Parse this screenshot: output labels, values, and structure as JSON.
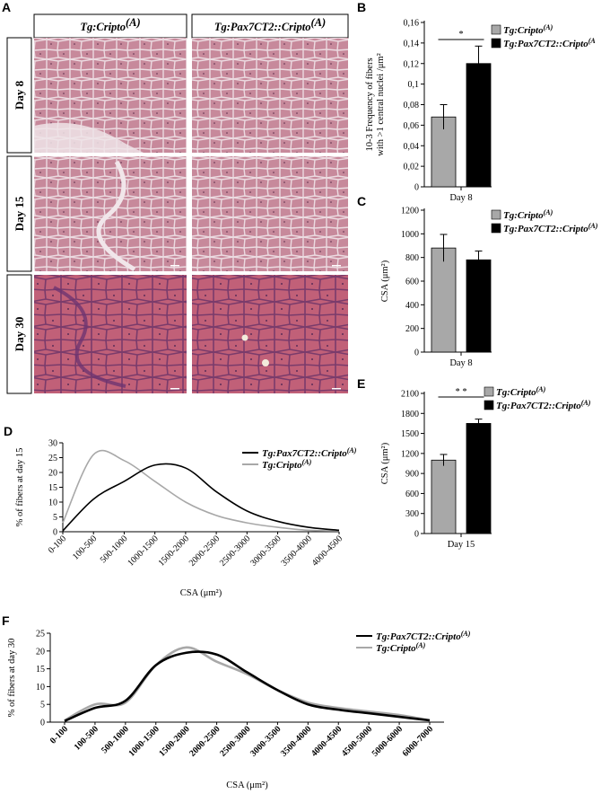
{
  "panels": {
    "A": "A",
    "B": "B",
    "C": "C",
    "D": "D",
    "E": "E",
    "F": "F"
  },
  "histology": {
    "columns": [
      "Tg:Cripto",
      "Tg:Pax7CT2::Cripto"
    ],
    "superscript": "(A)",
    "rows": [
      "Day 8",
      "Day 15",
      "Day 30"
    ]
  },
  "colors": {
    "cripto": "#a8a8a8",
    "pax7": "#000000",
    "tissue_pink": "#c98a9b",
    "tissue_purple": "#8d3f66"
  },
  "chart_data": [
    {
      "panel": "B",
      "type": "bar",
      "categories": [
        "Day 8"
      ],
      "series": [
        {
          "name": "Tg:Cripto(A)",
          "values": [
            0.068
          ],
          "error": [
            0.012
          ]
        },
        {
          "name": "Tg:Pax7CT2::Cripto(A",
          "values": [
            0.12
          ],
          "error": [
            0.017
          ]
        }
      ],
      "ylabel_line1": "10-3 Frequency of fibers",
      "ylabel_line2": "with >1 central nuclei /μm²",
      "ylim": [
        0,
        0.16
      ],
      "yticks": [
        "0",
        "0,02",
        "0,04",
        "0,06",
        "0,08",
        "0,1",
        "0,12",
        "0,14",
        "0,16"
      ],
      "significance": "*",
      "legend_position": "top-right"
    },
    {
      "panel": "C",
      "type": "bar",
      "categories": [
        "Day 8"
      ],
      "series": [
        {
          "name": "Tg:Cripto(A)",
          "values": [
            880
          ],
          "error": [
            115
          ]
        },
        {
          "name": "Tg:Pax7CT2::Cripto(A)",
          "values": [
            780
          ],
          "error": [
            75
          ]
        }
      ],
      "ylabel": "CSA (μm²)",
      "ylim": [
        0,
        1200
      ],
      "yticks": [
        "0",
        "200",
        "400",
        "600",
        "800",
        "1000",
        "1200"
      ],
      "legend_position": "top-right"
    },
    {
      "panel": "E",
      "type": "bar",
      "categories": [
        "Day 15"
      ],
      "series": [
        {
          "name": "Tg:Cripto(A)",
          "values": [
            1100
          ],
          "error": [
            85
          ]
        },
        {
          "name": "Tg:Pax7CT2::Cripto(A)",
          "values": [
            1650
          ],
          "error": [
            65
          ]
        }
      ],
      "ylabel": "CSA (μm²)",
      "ylim": [
        0,
        2100
      ],
      "yticks": [
        "0",
        "300",
        "600",
        "900",
        "1200",
        "1500",
        "1800",
        "2100"
      ],
      "significance": "* *",
      "legend_position": "top-right"
    },
    {
      "panel": "D",
      "type": "line",
      "categories": [
        "0-100",
        "100-500",
        "500-1000",
        "1000-1500",
        "1500-2000",
        "2000-2500",
        "2500-3000",
        "3000-3500",
        "3500-4000",
        "4000-4500"
      ],
      "series": [
        {
          "name": "Tg:Pax7CT2::Cripto(A)",
          "values": [
            0.3,
            11,
            17,
            22.5,
            21.5,
            13.5,
            7,
            3.5,
            1.5,
            0.5
          ]
        },
        {
          "name": "Tg:Cripto(A)",
          "values": [
            3,
            26,
            24,
            17,
            10,
            5.5,
            3,
            1.5,
            0.5,
            0.3
          ]
        }
      ],
      "xlabel": "CSA (μm²)",
      "ylabel": "% of fibers at day 15",
      "ylim": [
        0,
        30
      ],
      "yticks": [
        "0",
        "5",
        "10",
        "15",
        "20",
        "25",
        "30"
      ],
      "legend_position": "top-right"
    },
    {
      "panel": "F",
      "type": "line",
      "categories": [
        "0-100",
        "100-500",
        "500-1000",
        "1000-1500",
        "1500-2000",
        "2000-2500",
        "2500-3000",
        "3000-3500",
        "3500-4000",
        "4000-4500",
        "4500-5000",
        "5000-6000",
        "6000-7000"
      ],
      "series": [
        {
          "name": "Tg:Pax7CT2::Cripto(A)",
          "values": [
            0.3,
            4,
            6,
            16,
            19.5,
            19,
            14,
            9,
            5,
            3.5,
            2.5,
            1.5,
            0.5
          ]
        },
        {
          "name": "Tg:Cripto(A)",
          "values": [
            0.5,
            5,
            5.5,
            16,
            21,
            17,
            13.5,
            9,
            5.5,
            4,
            3,
            2,
            0.5
          ]
        }
      ],
      "xlabel": "CSA (μm²)",
      "ylabel": "% of fibers at day 30",
      "ylim": [
        0,
        25
      ],
      "yticks": [
        "0",
        "5",
        "10",
        "15",
        "20",
        "25"
      ],
      "legend_position": "top-right"
    }
  ]
}
